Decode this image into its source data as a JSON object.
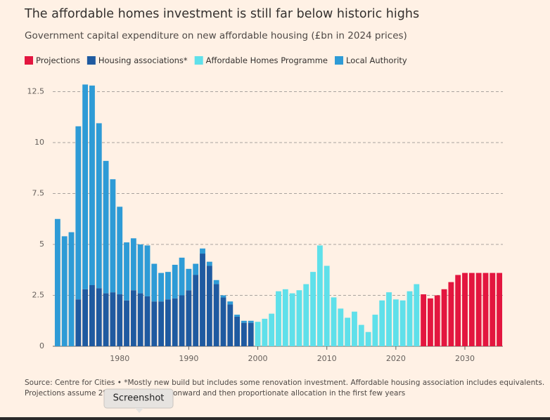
{
  "chart_data": {
    "type": "stacked_bar",
    "title": "The affordable homes investment is still far below historic highs",
    "subtitle": "Government capital expenditure on new affordable housing (£bn in 2024 prices)",
    "x": [
      1971,
      1972,
      1973,
      1974,
      1975,
      1976,
      1977,
      1978,
      1979,
      1980,
      1981,
      1982,
      1983,
      1984,
      1985,
      1986,
      1987,
      1988,
      1989,
      1990,
      1991,
      1992,
      1993,
      1994,
      1995,
      1996,
      1997,
      1998,
      1999,
      2000,
      2001,
      2002,
      2003,
      2004,
      2005,
      2006,
      2007,
      2008,
      2009,
      2010,
      2011,
      2012,
      2013,
      2014,
      2015,
      2016,
      2017,
      2018,
      2019,
      2020,
      2021,
      2022,
      2023,
      2024,
      2025,
      2026,
      2027,
      2028,
      2029,
      2030,
      2031,
      2032,
      2033,
      2034,
      2035
    ],
    "series": [
      {
        "name": "Projections",
        "color": "#e3163f",
        "values": [
          null,
          null,
          null,
          null,
          null,
          null,
          null,
          null,
          null,
          null,
          null,
          null,
          null,
          null,
          null,
          null,
          null,
          null,
          null,
          null,
          null,
          null,
          null,
          null,
          null,
          null,
          null,
          null,
          null,
          null,
          null,
          null,
          null,
          null,
          null,
          null,
          null,
          null,
          null,
          null,
          null,
          null,
          null,
          null,
          null,
          null,
          null,
          null,
          null,
          null,
          null,
          null,
          null,
          2.55,
          2.35,
          2.5,
          2.8,
          3.15,
          3.5,
          3.6,
          3.6,
          3.6,
          3.6,
          3.6,
          3.6
        ]
      },
      {
        "name": "Housing associations*",
        "color": "#1f5aa0",
        "values": [
          0,
          0,
          0,
          2.3,
          2.8,
          3.0,
          2.85,
          2.6,
          2.65,
          2.55,
          2.25,
          2.75,
          2.6,
          2.45,
          2.2,
          2.2,
          2.3,
          2.35,
          2.5,
          2.75,
          3.5,
          4.55,
          3.95,
          3.05,
          2.4,
          2.05,
          1.45,
          1.15,
          1.15,
          null,
          null,
          null,
          null,
          null,
          null,
          null,
          null,
          null,
          null,
          null,
          null,
          null,
          null,
          null,
          null,
          null,
          null,
          null,
          null,
          null,
          null,
          null,
          null,
          null,
          null,
          null,
          null,
          null,
          null,
          null,
          null,
          null,
          null,
          null,
          null
        ]
      },
      {
        "name": "Affordable Homes Programme",
        "color": "#5fe0ea",
        "values": [
          null,
          null,
          null,
          null,
          null,
          null,
          null,
          null,
          null,
          null,
          null,
          null,
          null,
          null,
          null,
          null,
          null,
          null,
          null,
          null,
          null,
          null,
          null,
          null,
          null,
          null,
          null,
          null,
          null,
          1.2,
          1.35,
          1.6,
          2.7,
          2.8,
          2.6,
          2.75,
          3.05,
          3.65,
          4.95,
          3.95,
          2.4,
          1.85,
          1.4,
          1.7,
          1.05,
          0.7,
          1.55,
          2.25,
          2.65,
          2.3,
          2.25,
          2.7,
          3.05,
          null,
          null,
          null,
          null,
          null,
          null,
          null,
          null,
          null,
          null,
          null,
          null
        ]
      },
      {
        "name": "Local Authority",
        "color": "#2e9bd6",
        "values": [
          6.25,
          5.4,
          5.6,
          8.5,
          10.05,
          9.8,
          8.1,
          6.5,
          5.55,
          4.3,
          2.85,
          2.55,
          2.4,
          2.5,
          1.85,
          1.4,
          1.35,
          1.65,
          1.85,
          1.05,
          0.55,
          0.25,
          0.2,
          0.2,
          0.1,
          0.15,
          0.1,
          0.1,
          0.1,
          null,
          null,
          null,
          null,
          null,
          null,
          null,
          null,
          null,
          null,
          null,
          null,
          null,
          null,
          null,
          null,
          null,
          null,
          null,
          null,
          null,
          null,
          null,
          null,
          null,
          null,
          null,
          null,
          null,
          null,
          null,
          null,
          null,
          null,
          null,
          null
        ]
      }
    ],
    "xlim": [
      1970.3,
      2035.5
    ],
    "xticks": [
      1980,
      1990,
      2000,
      2010,
      2020,
      2030
    ],
    "ylim": [
      0,
      13
    ],
    "yticks": [
      0,
      2.5,
      5,
      7.5,
      10,
      12.5
    ],
    "grid": true,
    "legend": "top-left",
    "source": [
      "Source: Centre for Cities • *Mostly new build but includes some renovation investment. Affordable housing association includes equivalents.",
      "Projections assume 2%",
      "onward and then proportionate allocation in the first few years"
    ]
  },
  "tooltip": "Screenshot"
}
